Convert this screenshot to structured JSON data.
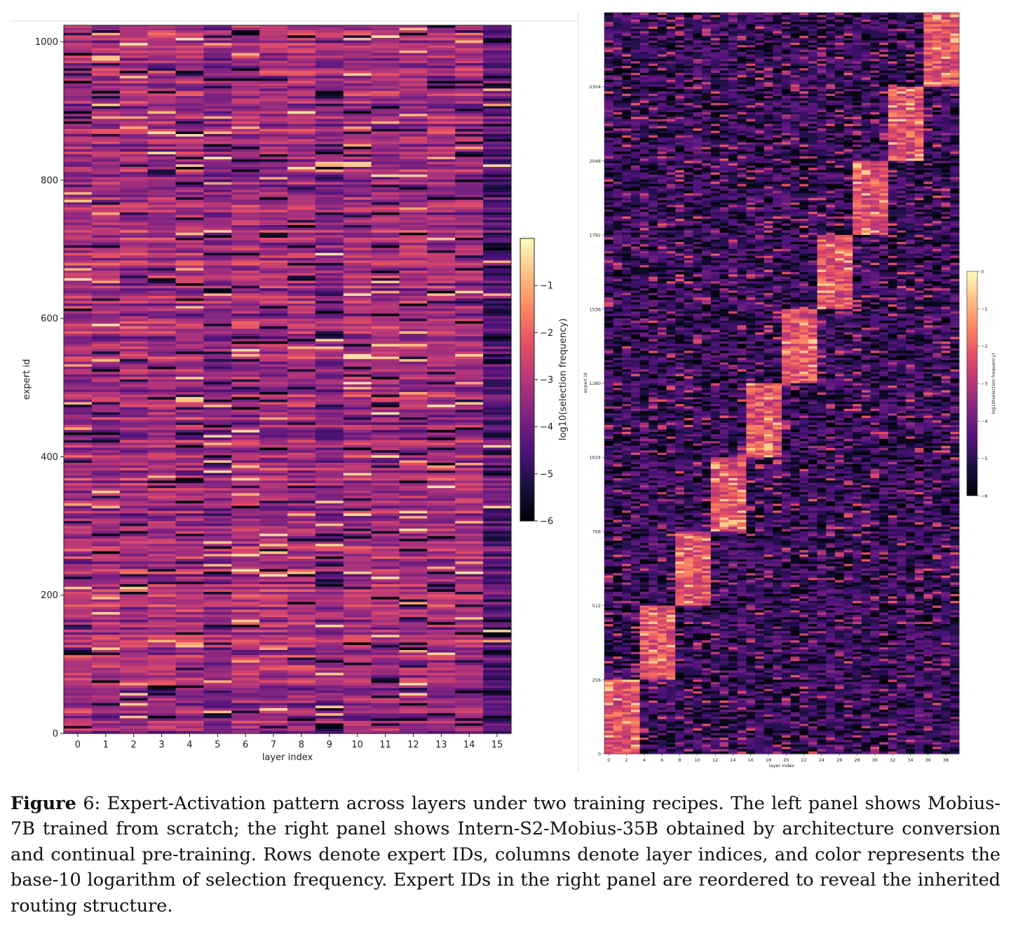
{
  "chart_data": [
    {
      "type": "heatmap",
      "xlabel": "layer index",
      "ylabel": "expert id",
      "x_ticks": [
        "0",
        "1",
        "2",
        "3",
        "4",
        "5",
        "6",
        "7",
        "8",
        "9",
        "10",
        "11",
        "12",
        "13",
        "14",
        "15"
      ],
      "y_ticks": [
        "0",
        "200",
        "400",
        "600",
        "800",
        "1000"
      ],
      "x_range": [
        0,
        15
      ],
      "y_range": [
        0,
        1024
      ],
      "colormap": "magma",
      "colorbar": {
        "label": "log10(selection frequency)",
        "ticks": [
          "−1",
          "−2",
          "−3",
          "−4",
          "−5",
          "−6"
        ],
        "range": [
          -6,
          0
        ]
      },
      "pattern": "dense uniform activation across all layers; layer 15 darker"
    },
    {
      "type": "heatmap",
      "xlabel": "layer index",
      "ylabel": "expert id",
      "x_ticks": [
        "0",
        "2",
        "4",
        "6",
        "8",
        "10",
        "12",
        "14",
        "16",
        "18",
        "20",
        "22",
        "24",
        "26",
        "28",
        "30",
        "32",
        "34",
        "36",
        "38"
      ],
      "y_ticks": [
        "0",
        "256",
        "512",
        "768",
        "1024",
        "1280",
        "1536",
        "1792",
        "2048",
        "2304"
      ],
      "x_range": [
        0,
        39
      ],
      "y_range": [
        0,
        2560
      ],
      "colormap": "magma",
      "colorbar": {
        "label": "log10(selection frequency)",
        "ticks": [
          "0",
          "−1",
          "−2",
          "−3",
          "−4",
          "−5",
          "−6"
        ],
        "range": [
          -6,
          0
        ]
      },
      "blocks": [
        {
          "expert_ids": [
            0,
            256
          ],
          "layers": [
            0,
            3
          ]
        },
        {
          "expert_ids": [
            256,
            512
          ],
          "layers": [
            4,
            7
          ]
        },
        {
          "expert_ids": [
            512,
            768
          ],
          "layers": [
            8,
            11
          ]
        },
        {
          "expert_ids": [
            768,
            1024
          ],
          "layers": [
            12,
            15
          ]
        },
        {
          "expert_ids": [
            1024,
            1280
          ],
          "layers": [
            16,
            19
          ]
        },
        {
          "expert_ids": [
            1280,
            1536
          ],
          "layers": [
            20,
            23
          ]
        },
        {
          "expert_ids": [
            1536,
            1792
          ],
          "layers": [
            24,
            27
          ]
        },
        {
          "expert_ids": [
            1792,
            2048
          ],
          "layers": [
            28,
            31
          ]
        },
        {
          "expert_ids": [
            2048,
            2304
          ],
          "layers": [
            32,
            35
          ]
        },
        {
          "expert_ids": [
            2304,
            2560
          ],
          "layers": [
            36,
            39
          ]
        }
      ]
    }
  ],
  "caption": {
    "label": "Figure",
    "number": " 6",
    "text": ": Expert-Activation pattern across layers under two training recipes. The left panel shows Mobius-7B trained from scratch; the right panel shows Intern-S2-Mobius-35B obtained by architecture conversion and continual pre-training. Rows denote expert IDs, columns denote layer indices, and color represents the base-10 logarithm of selection frequency. Expert IDs in the right panel are reordered to reveal the inherited routing structure."
  }
}
